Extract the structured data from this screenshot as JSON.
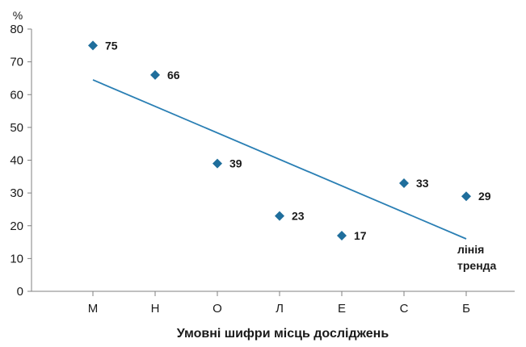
{
  "chart_data": {
    "type": "scatter",
    "title": "",
    "categories": [
      "М",
      "Н",
      "О",
      "Л",
      "Е",
      "С",
      "Б"
    ],
    "series": [
      {
        "values": [
          75,
          66,
          39,
          23,
          17,
          33,
          29
        ]
      }
    ],
    "data_labels": [
      "75",
      "66",
      "39",
      "23",
      "17",
      "33",
      "29"
    ],
    "trendline": {
      "type": "linear",
      "label_line1": "лінія",
      "label_line2": "тренда",
      "start_value": 64.5,
      "end_value": 16
    },
    "xlabel": "Умовні шифри місць досліджень",
    "ylabel": "%",
    "ylim": [
      0,
      80
    ],
    "yticks": [
      "0",
      "10",
      "20",
      "30",
      "40",
      "50",
      "60",
      "70",
      "80"
    ],
    "grid": false,
    "legend": "none",
    "colors": {
      "marker": "#1f6e9c",
      "trendline": "#2a7fb4",
      "axis": "#808080"
    }
  }
}
